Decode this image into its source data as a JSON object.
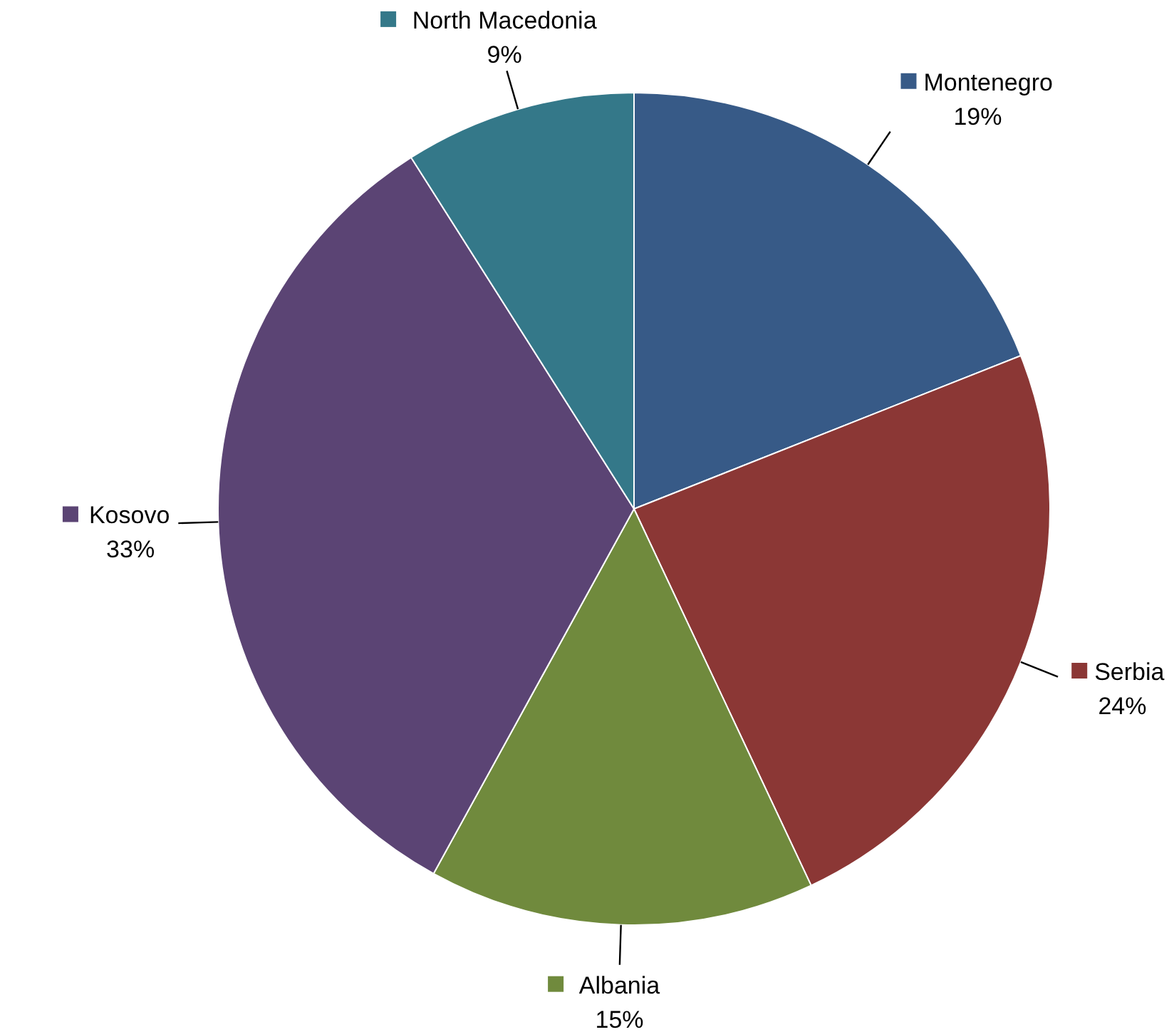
{
  "chart_data": {
    "type": "pie",
    "categories": [
      "Montenegro",
      "Serbia",
      "Albania",
      "Kosovo",
      "North Macedonia"
    ],
    "values": [
      19,
      24,
      15,
      33,
      9
    ],
    "value_labels": [
      "19%",
      "24%",
      "15%",
      "33%",
      "9%"
    ],
    "colors": [
      "#375a87",
      "#8b3735",
      "#708a3d",
      "#5b4474",
      "#347889"
    ],
    "data_labels": true,
    "legend": "right"
  }
}
